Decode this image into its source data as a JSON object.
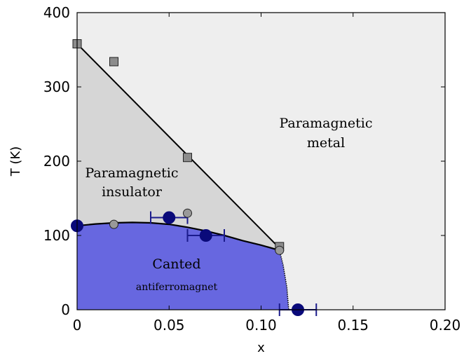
{
  "chart_data": {
    "type": "scatter",
    "xlabel": "x",
    "ylabel": "T (K)",
    "xlim": [
      0,
      0.2
    ],
    "ylim": [
      0,
      400
    ],
    "x_ticks": [
      0,
      0.05,
      0.1,
      0.15,
      0.2
    ],
    "x_tick_labels": [
      "0",
      "0.05",
      "0.10",
      "0.15",
      "0.20"
    ],
    "y_ticks": [
      0,
      100,
      200,
      300,
      400
    ],
    "y_tick_labels": [
      "0",
      "100",
      "200",
      "300",
      "400"
    ],
    "grid": false,
    "colors": {
      "metal_region": "#eeeeee",
      "insulator_region": "#d6d6d6",
      "afm_region": "#6767e0",
      "square_marker": "#8c8c8c",
      "gray_circle": "#999999",
      "navy_circle": "#0a0a7a",
      "errorbar": "#1a1a8c"
    },
    "regions": [
      {
        "label_lines": [
          "Paramagnetic",
          "metal"
        ]
      },
      {
        "label_lines": [
          "Paramagnetic",
          "insulator"
        ]
      },
      {
        "label_lines": [
          "Canted",
          "antiferromagnet"
        ]
      }
    ],
    "boundaries": {
      "insulator_metal_line": [
        [
          0,
          358
        ],
        [
          0.11,
          83
        ]
      ],
      "afm_dome": [
        [
          0,
          113
        ],
        [
          0.01,
          115.5
        ],
        [
          0.02,
          117
        ],
        [
          0.03,
          117.5
        ],
        [
          0.04,
          117
        ],
        [
          0.05,
          115
        ],
        [
          0.06,
          111
        ],
        [
          0.07,
          106
        ],
        [
          0.08,
          100
        ],
        [
          0.09,
          93
        ],
        [
          0.1,
          87
        ],
        [
          0.11,
          80
        ]
      ],
      "afm_dotted_drop": [
        [
          0.11,
          80
        ],
        [
          0.112,
          60
        ],
        [
          0.114,
          30
        ],
        [
          0.115,
          0
        ]
      ]
    },
    "series": [
      {
        "marker": "square",
        "points": [
          [
            0,
            358
          ],
          [
            0.02,
            334
          ],
          [
            0.06,
            205
          ],
          [
            0.11,
            85
          ]
        ]
      },
      {
        "marker": "gray-circle",
        "points": [
          [
            0.02,
            115
          ],
          [
            0.06,
            130
          ],
          [
            0.11,
            80
          ]
        ]
      },
      {
        "marker": "navy-circle",
        "points": [
          [
            0,
            113
          ],
          [
            0.05,
            124
          ],
          [
            0.07,
            100
          ],
          [
            0.12,
            0
          ]
        ],
        "xerr": [
          0,
          0.01,
          0.01,
          0.01
        ]
      }
    ]
  }
}
